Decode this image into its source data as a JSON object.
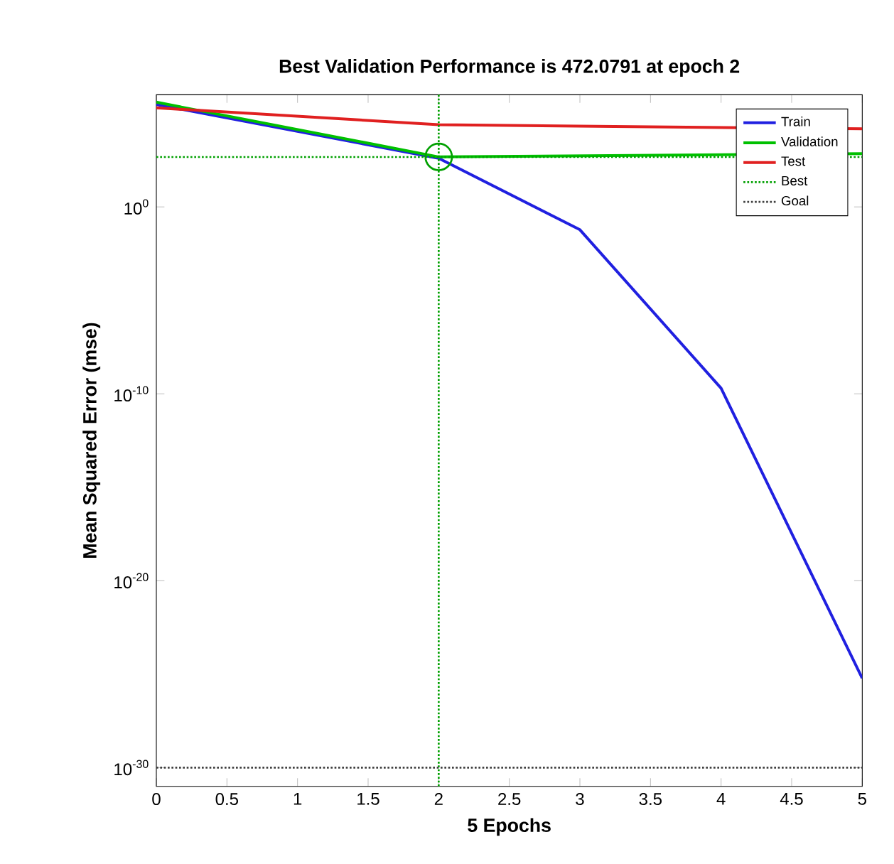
{
  "chart_data": {
    "type": "line",
    "title": "Best Validation Performance is 472.0791 at epoch 2",
    "xlabel": "5 Epochs",
    "ylabel": "Mean Squared Error  (mse)",
    "log": "y",
    "xlim": [
      0,
      5
    ],
    "xticks": [
      0,
      0.5,
      1,
      1.5,
      2,
      2.5,
      3,
      3.5,
      4,
      4.5,
      5
    ],
    "ylim": [
      1e-31,
      1000000.0
    ],
    "yticks": [
      {
        "value": 1e-30,
        "label": "10$^{-30}$"
      },
      {
        "value": 1e-20,
        "label": "10$^{-20}$"
      },
      {
        "value": 1e-10,
        "label": "10$^{-10}$"
      },
      {
        "value": 1,
        "label": "10$^{0}$"
      }
    ],
    "grid": false,
    "legend": "top right",
    "x": [
      0,
      1,
      2,
      3,
      4,
      5
    ],
    "series": [
      {
        "name": "Train",
        "color": "#2020e0",
        "values": [
          300000,
          null,
          400,
          0.06,
          2e-10,
          6e-26
        ]
      },
      {
        "name": "Validation",
        "color": "#00c000",
        "values": [
          400000,
          null,
          472.0791,
          null,
          null,
          700
        ]
      },
      {
        "name": "Test",
        "color": "#e02020",
        "values": [
          200000,
          null,
          25000,
          null,
          null,
          15000
        ]
      },
      {
        "type": "scatter",
        "marker": "circle",
        "color": "#00a000",
        "x": [
          2
        ],
        "values": [
          472.0791
        ]
      }
    ],
    "ref_lines": [
      {
        "axis": "y",
        "value": 472.0791,
        "label": "Best",
        "color": "#00a000",
        "line_style": "dotted"
      },
      {
        "axis": "x",
        "value": 2,
        "color": "#00a000",
        "line_style": "dotted"
      },
      {
        "axis": "y",
        "value": 1e-30,
        "label": "Goal",
        "color": "#404040",
        "line_style": "dotted"
      }
    ]
  }
}
